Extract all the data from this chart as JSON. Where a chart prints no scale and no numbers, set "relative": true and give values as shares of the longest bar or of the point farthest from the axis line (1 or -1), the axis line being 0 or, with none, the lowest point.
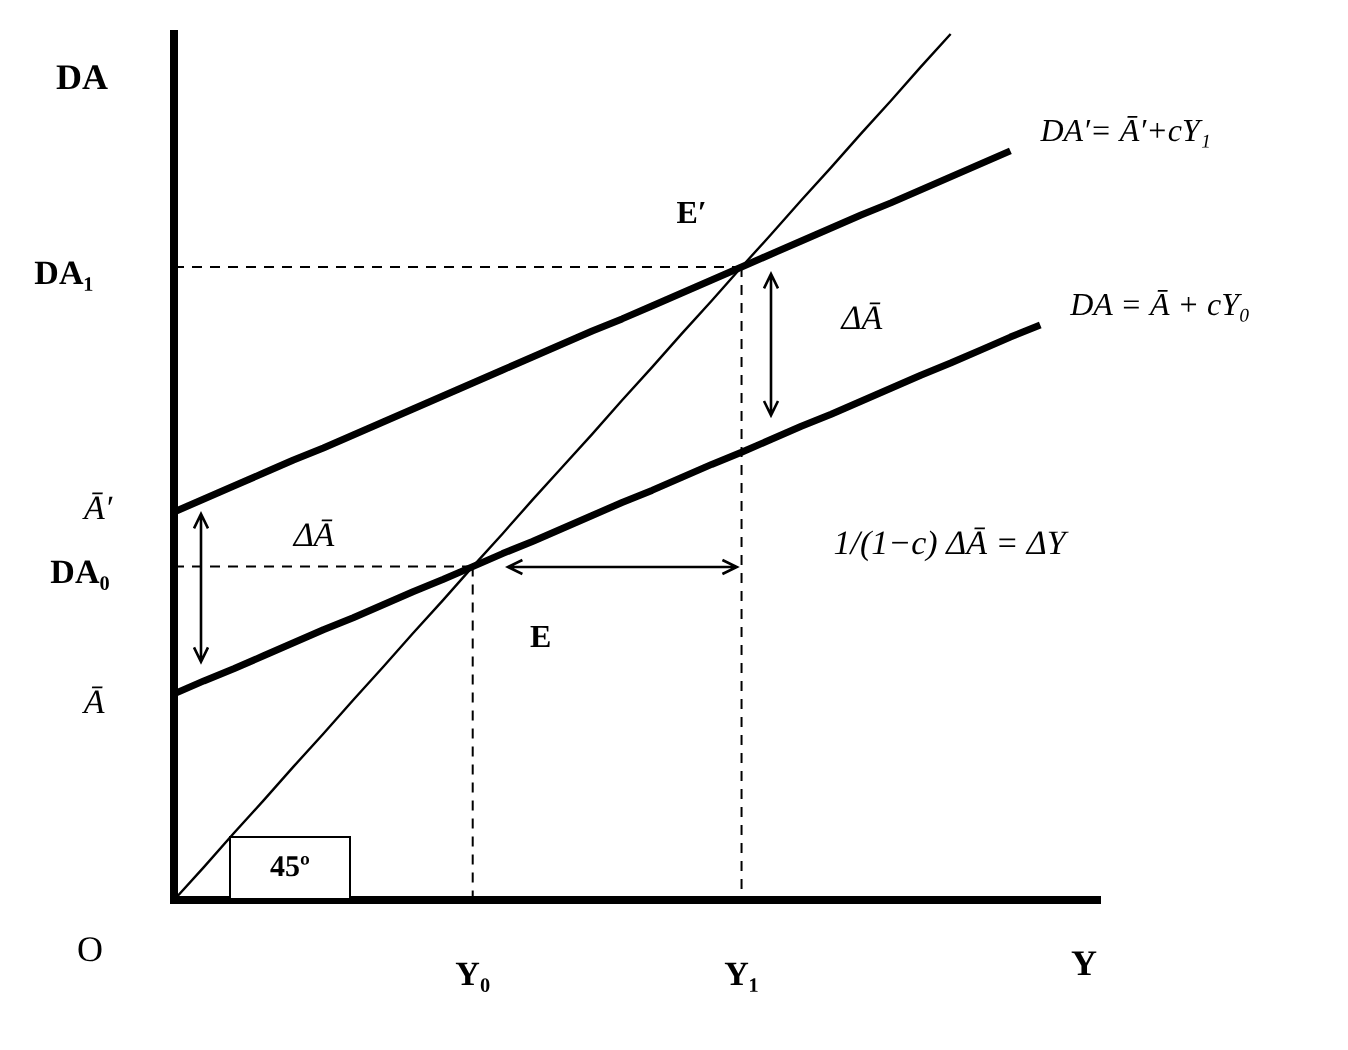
{
  "chart_data": {
    "type": "line",
    "relative": true,
    "xlabel": "Y",
    "ylabel": "DA",
    "marker": "none",
    "categories": [
      null,
      null,
      null,
      null,
      null,
      null,
      null,
      null,
      null,
      null,
      "Y₀",
      null,
      null,
      null,
      null,
      null,
      null,
      null,
      null,
      "Y₁",
      null,
      null,
      null,
      null,
      null,
      null,
      null,
      null,
      null,
      null,
      null,
      null
    ],
    "series": [
      {
        "color": "#000000",
        "values": [
          0,
          0.038,
          0.077,
          0.115,
          0.154,
          0.192,
          0.231,
          0.269,
          0.308,
          0.346,
          0.385,
          0.423,
          0.462,
          0.5,
          0.538,
          0.577,
          0.615,
          0.654,
          0.692,
          0.731,
          0.769,
          0.808,
          0.846,
          0.885,
          0.923,
          0.962,
          1,
          null,
          null,
          null,
          null,
          null
        ]
      },
      {
        "name": "DA′= Ā′+cY₁",
        "color": "#000000",
        "values": [
          0.448,
          0.463,
          0.478,
          0.493,
          0.508,
          0.522,
          0.537,
          0.552,
          0.567,
          0.582,
          0.597,
          0.612,
          0.627,
          0.642,
          0.657,
          0.671,
          0.686,
          0.701,
          0.716,
          0.731,
          0.746,
          0.761,
          0.776,
          0.791,
          0.805,
          0.82,
          0.835,
          0.85,
          0.865,
          null,
          null,
          null
        ]
      },
      {
        "name": "DA = Ā + cY₀",
        "color": "#000000",
        "values": [
          0.238,
          0.253,
          0.267,
          0.282,
          0.297,
          0.312,
          0.326,
          0.341,
          0.356,
          0.37,
          0.385,
          0.4,
          0.414,
          0.429,
          0.444,
          0.459,
          0.473,
          0.488,
          0.503,
          0.517,
          0.532,
          0.547,
          0.561,
          0.576,
          0.591,
          0.606,
          0.62,
          0.635,
          0.65,
          0.664,
          null,
          null
        ]
      },
      {
        "color": "#000000",
        "line_style": "dashed",
        "values": [
          0.731,
          0.731,
          0.731,
          0.731,
          0.731,
          0.731,
          0.731,
          0.731,
          0.731,
          0.731,
          0.731,
          0.731,
          0.731,
          0.731,
          0.731,
          0.731,
          0.731,
          0.731,
          0.731,
          0.731,
          null,
          null,
          null,
          null,
          null,
          null,
          null,
          null,
          null,
          null,
          null,
          null
        ]
      },
      {
        "color": "#000000",
        "line_style": "dashed",
        "x": [
          "Y₁",
          "Y₁"
        ],
        "values": [
          0.731,
          0
        ]
      },
      {
        "color": "#000000",
        "line_style": "dashed",
        "values": [
          0.385,
          0.385,
          0.385,
          0.385,
          0.385,
          0.385,
          0.385,
          0.385,
          0.385,
          0.385,
          0.385,
          null,
          null,
          null,
          null,
          null,
          null,
          null,
          null,
          null,
          null,
          null,
          null,
          null,
          null,
          null,
          null,
          null,
          null,
          null,
          null,
          null
        ]
      },
      {
        "color": "#000000",
        "line_style": "dashed",
        "x": [
          "Y₀",
          "Y₀"
        ],
        "values": [
          0.385,
          0
        ]
      }
    ],
    "annotations": [
      {
        "text": "E′",
        "x": "Y₁",
        "y": 0.731
      },
      {
        "text": "ΔĀ",
        "x": "Y₁",
        "y": 0.67
      },
      {
        "text": "1/(1−c) ΔĀ = ΔY",
        "x": "Y₁",
        "y": 0.41
      },
      {
        "text": "ΔĀ",
        "y": 0.385
      },
      {
        "text": "E",
        "x": "Y₀",
        "y": 0.385
      },
      "45º",
      "O",
      "DA₁",
      "Ā′",
      "DA₀",
      "Ā"
    ]
  }
}
